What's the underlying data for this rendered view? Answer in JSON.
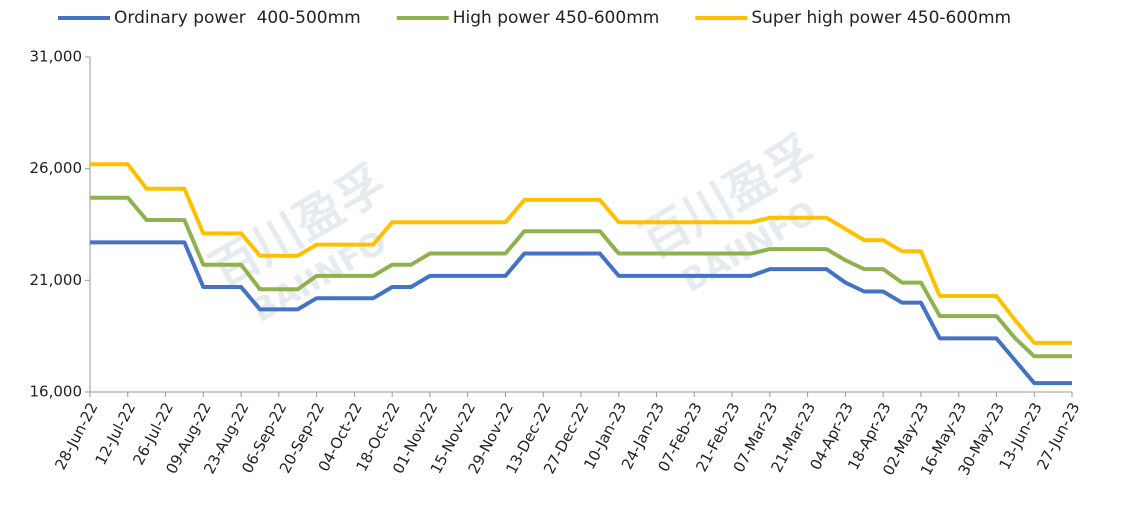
{
  "chart_data": {
    "type": "line",
    "watermark": [
      "百川盈孚",
      "BAIINFO"
    ],
    "categories": [
      "28-Jun-22",
      null,
      "12-Jul-22",
      null,
      "26-Jul-22",
      null,
      "09-Aug-22",
      null,
      "23-Aug-22",
      null,
      "06-Sep-22",
      null,
      "20-Sep-22",
      null,
      "04-Oct-22",
      null,
      "18-Oct-22",
      null,
      "01-Nov-22",
      null,
      "15-Nov-22",
      null,
      "29-Nov-22",
      null,
      "13-Dec-22",
      null,
      "27-Dec-22",
      null,
      "10-Jan-23",
      null,
      "24-Jan-23",
      null,
      "07-Feb-23",
      null,
      "21-Feb-23",
      null,
      "07-Mar-23",
      null,
      "21-Mar-23",
      null,
      "04-Apr-23",
      null,
      "18-Apr-23",
      null,
      "02-May-23",
      null,
      "16-May-23",
      null,
      "30-May-23",
      null,
      "13-Jun-23",
      null,
      "27-Jun-23"
    ],
    "series": [
      {
        "name": "Ordinary power  400-500mm",
        "color": "#4472c4",
        "values": [
          22700,
          22700,
          22700,
          22700,
          22700,
          22700,
          20700,
          20700,
          20700,
          19700,
          19700,
          19700,
          20200,
          20200,
          20200,
          20200,
          20700,
          20700,
          21200,
          21200,
          21200,
          21200,
          21200,
          22200,
          22200,
          22200,
          22200,
          22200,
          21200,
          21200,
          21200,
          21200,
          21200,
          21200,
          21200,
          21200,
          21500,
          21500,
          21500,
          21500,
          20900,
          20500,
          20500,
          20000,
          20000,
          18400,
          18400,
          18400,
          18400,
          17400,
          16400,
          16400,
          16400
        ]
      },
      {
        "name": "High power 450-600mm",
        "color": "#8fb24f",
        "values": [
          24700,
          24700,
          24700,
          23700,
          23700,
          23700,
          21700,
          21700,
          21700,
          20600,
          20600,
          20600,
          21200,
          21200,
          21200,
          21200,
          21700,
          21700,
          22200,
          22200,
          22200,
          22200,
          22200,
          23200,
          23200,
          23200,
          23200,
          23200,
          22200,
          22200,
          22200,
          22200,
          22200,
          22200,
          22200,
          22200,
          22400,
          22400,
          22400,
          22400,
          21900,
          21500,
          21500,
          20900,
          20900,
          19400,
          19400,
          19400,
          19400,
          18400,
          17600,
          17600,
          17600
        ]
      },
      {
        "name": "Super high power 450-600mm",
        "color": "#ffc000",
        "values": [
          26200,
          26200,
          26200,
          25100,
          25100,
          25100,
          23100,
          23100,
          23100,
          22100,
          22100,
          22100,
          22600,
          22600,
          22600,
          22600,
          23600,
          23600,
          23600,
          23600,
          23600,
          23600,
          23600,
          24600,
          24600,
          24600,
          24600,
          24600,
          23600,
          23600,
          23600,
          23600,
          23600,
          23600,
          23600,
          23600,
          23800,
          23800,
          23800,
          23800,
          23300,
          22800,
          22800,
          22300,
          22300,
          20300,
          20300,
          20300,
          20300,
          19200,
          18200,
          18200,
          18200
        ]
      }
    ],
    "ylim": [
      16000,
      31000
    ],
    "yticks": [
      {
        "value": 16000,
        "label": "16,000"
      },
      {
        "value": 21000,
        "label": "21,000"
      },
      {
        "value": 26000,
        "label": "26,000"
      },
      {
        "value": 31000,
        "label": "31,000"
      }
    ],
    "grid": false,
    "legend": "top"
  }
}
